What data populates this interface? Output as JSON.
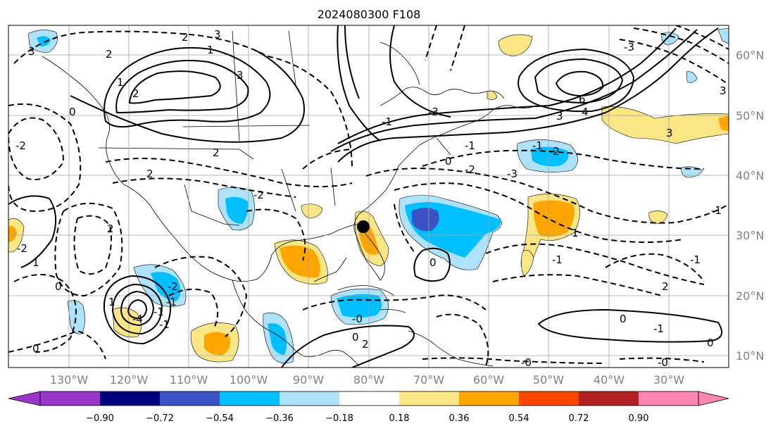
{
  "title": "2024080300 F108",
  "latitude_labels": [
    "60°N",
    "50°N",
    "40°N",
    "30°N",
    "20°N",
    "10°N"
  ],
  "longitude_labels": [
    "130°W",
    "120°W",
    "110°W",
    "100°W",
    "90°W",
    "80°W",
    "70°W",
    "60°W",
    "50°W",
    "40°W",
    "30°W"
  ],
  "colorbar": {
    "tick_labels": [
      "−0.90",
      "−0.72",
      "−0.54",
      "−0.36",
      "−0.18",
      "0.18",
      "0.36",
      "0.54",
      "0.72",
      "0.90"
    ],
    "colors": [
      "#9a36cc",
      "#000080",
      "#3a52c4",
      "#00bfff",
      "#aee2fb",
      "#ffffff",
      "#fbe686",
      "#ffa500",
      "#ff4500",
      "#b22222",
      "#ff86b0"
    ]
  },
  "marker": {
    "name": "storm-center"
  },
  "contour_labels": [
    "3",
    "2",
    "1",
    "2",
    "1",
    "3",
    "2",
    "3",
    "0",
    "-2",
    "2",
    "2",
    "-2",
    "2",
    "-3",
    "-1",
    "-3",
    "6",
    "4",
    "3",
    "3",
    "-1",
    "-2",
    "0",
    "-1",
    "-2",
    "-3",
    "3",
    "-2",
    "1",
    "-1",
    "2",
    "-1",
    "1",
    "-2",
    "-1",
    "0",
    "-1",
    "0",
    "1",
    "-1",
    "-4",
    "-0",
    "-0",
    "0",
    "2",
    "-0",
    "0",
    "-1",
    "-1",
    "0",
    "0"
  ]
}
